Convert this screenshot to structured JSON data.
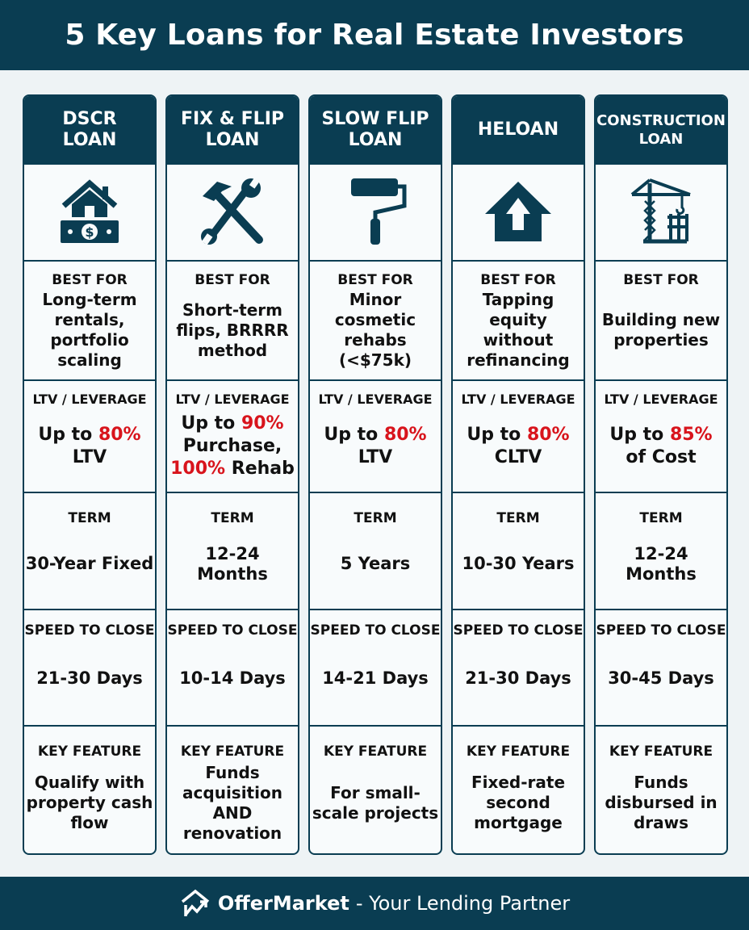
{
  "title": "5 Key Loans for Real Estate Investors",
  "colors": {
    "primary": "#0a3d52",
    "accent": "#d8141c",
    "background": "#eef3f5"
  },
  "labels": {
    "best_for": "BEST FOR",
    "ltv": "LTV / LEVERAGE",
    "term": "TERM",
    "speed": "SPEED TO CLOSE",
    "key": "KEY FEATURE"
  },
  "loans": [
    {
      "name": "DSCR LOAN",
      "icon": "house-money-icon",
      "best_for": "Long-term rentals, portfolio scaling",
      "ltv": [
        {
          "t": "Up to "
        },
        {
          "t": "80%",
          "red": true
        },
        {
          "t": " LTV"
        }
      ],
      "term": "30-Year Fixed",
      "speed": "21-30 Days",
      "key": "Qualify with property cash flow"
    },
    {
      "name": "FIX & FLIP LOAN",
      "icon": "hammer-wrench-icon",
      "best_for": "Short-term flips, BRRRR method",
      "ltv": [
        {
          "t": "Up to "
        },
        {
          "t": "90%",
          "red": true
        },
        {
          "t": " Purchase, "
        },
        {
          "t": "100%",
          "red": true
        },
        {
          "t": " Rehab"
        }
      ],
      "term": "12-24 Months",
      "speed": "10-14 Days",
      "key": "Funds acquisition AND renovation"
    },
    {
      "name": "SLOW FLIP LOAN",
      "icon": "paint-roller-icon",
      "best_for": "Minor cosmetic rehabs (<$75k)",
      "ltv": [
        {
          "t": "Up to "
        },
        {
          "t": "80%",
          "red": true
        },
        {
          "t": " LTV"
        }
      ],
      "term": "5 Years",
      "speed": "14-21 Days",
      "key": "For small-scale projects"
    },
    {
      "name": "HELOAN",
      "icon": "house-arrow-up-icon",
      "best_for": "Tapping equity without refinancing",
      "ltv": [
        {
          "t": "Up to "
        },
        {
          "t": "80%",
          "red": true
        },
        {
          "t": " CLTV"
        }
      ],
      "term": "10-30 Years",
      "speed": "21-30 Days",
      "key": "Fixed-rate second mortgage"
    },
    {
      "name": "CONSTRUCTION LOAN",
      "icon": "crane-icon",
      "best_for": "Building new properties",
      "ltv": [
        {
          "t": "Up to "
        },
        {
          "t": "85%",
          "red": true
        },
        {
          "t": " of Cost"
        }
      ],
      "term": "12-24 Months",
      "speed": "30-45 Days",
      "key": "Funds disbursed in draws"
    }
  ],
  "footer": {
    "brand": "OfferMarket",
    "tagline": "- Your Lending Partner",
    "logo_icon": "house-chart-icon"
  }
}
